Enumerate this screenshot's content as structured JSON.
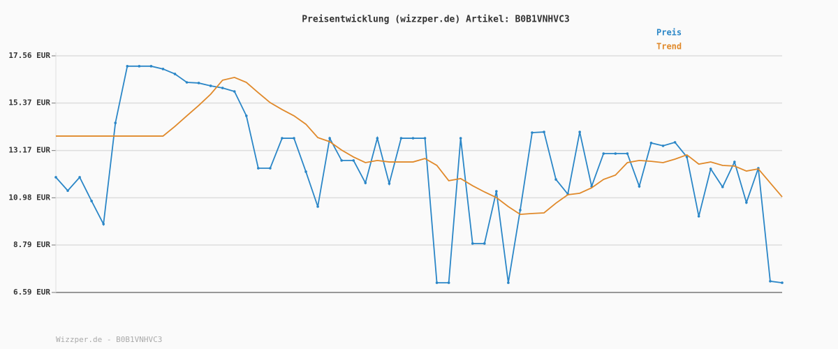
{
  "chart_data": {
    "type": "line",
    "title": "Preisentwicklung (wizzper.de) Artikel: B0B1VNHVC3",
    "footer": "Wizzper.de - B0B1VNHVC3",
    "ylim": [
      6.59,
      17.56
    ],
    "yticks": [
      {
        "value": 6.59,
        "label": "6.59 EUR"
      },
      {
        "value": 8.79,
        "label": "8.79 EUR"
      },
      {
        "value": 10.98,
        "label": "10.98 EUR"
      },
      {
        "value": 13.17,
        "label": "13.17 EUR"
      },
      {
        "value": 15.37,
        "label": "15.37 EUR"
      },
      {
        "value": 17.56,
        "label": "17.56 EUR"
      }
    ],
    "grid": true,
    "legend": "top-right",
    "series": [
      {
        "name": "Preis",
        "color": "#2a86c7",
        "markers": true,
        "values": [
          11.93,
          11.31,
          11.93,
          10.83,
          9.76,
          14.45,
          17.08,
          17.08,
          17.08,
          16.95,
          16.72,
          16.33,
          16.3,
          16.17,
          16.07,
          15.91,
          14.78,
          12.35,
          12.35,
          13.74,
          13.74,
          12.19,
          10.57,
          13.74,
          12.71,
          12.71,
          11.67,
          13.74,
          11.64,
          13.74,
          13.74,
          13.74,
          7.04,
          7.04,
          13.74,
          8.86,
          8.86,
          11.28,
          7.04,
          10.41,
          14.0,
          14.03,
          11.83,
          11.15,
          14.03,
          11.51,
          13.03,
          13.03,
          13.03,
          11.51,
          13.52,
          13.39,
          13.55,
          12.87,
          10.12,
          12.32,
          11.48,
          12.64,
          10.76,
          12.35,
          7.11,
          7.04
        ]
      },
      {
        "name": "Trend",
        "color": "#e0892a",
        "markers": false,
        "values": [
          13.84,
          13.84,
          13.84,
          13.84,
          13.84,
          13.84,
          13.84,
          13.84,
          13.84,
          13.84,
          14.29,
          14.78,
          15.26,
          15.78,
          16.43,
          16.56,
          16.33,
          15.85,
          15.39,
          15.07,
          14.78,
          14.39,
          13.77,
          13.58,
          13.19,
          12.87,
          12.61,
          12.71,
          12.64,
          12.64,
          12.64,
          12.8,
          12.48,
          11.77,
          11.87,
          11.54,
          11.25,
          10.99,
          10.57,
          10.21,
          10.25,
          10.28,
          10.73,
          11.12,
          11.19,
          11.44,
          11.83,
          12.03,
          12.61,
          12.71,
          12.67,
          12.61,
          12.77,
          12.97,
          12.54,
          12.64,
          12.48,
          12.45,
          12.22,
          12.32,
          11.67,
          11.02
        ]
      }
    ]
  }
}
